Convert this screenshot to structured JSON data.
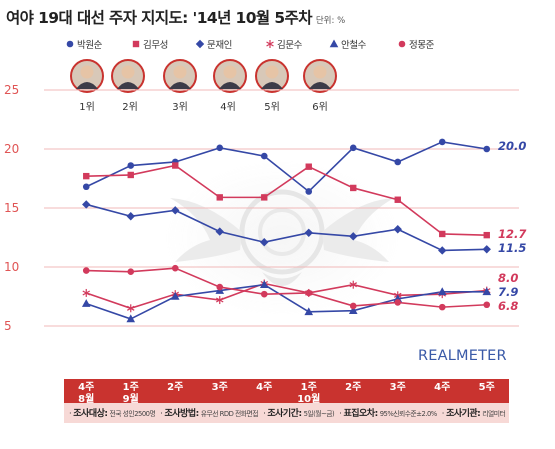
{
  "chart_data": {
    "type": "line",
    "title": "여야 19대 대선 주자 지지도: '14년 10월 5주차",
    "unit_label": "단위: %",
    "categories": [
      {
        "week": "4주",
        "month": "8월"
      },
      {
        "week": "1주",
        "month": "9월"
      },
      {
        "week": "2주",
        "month": ""
      },
      {
        "week": "3주",
        "month": ""
      },
      {
        "week": "4주",
        "month": ""
      },
      {
        "week": "1주",
        "month": "10월"
      },
      {
        "week": "2주",
        "month": ""
      },
      {
        "week": "3주",
        "month": ""
      },
      {
        "week": "4주",
        "month": ""
      },
      {
        "week": "5주",
        "month": ""
      }
    ],
    "ylim": [
      5,
      25
    ],
    "yticks": [
      "5",
      "10",
      "15",
      "20",
      "25"
    ],
    "grid": true,
    "series": [
      {
        "name": "박원순",
        "color": "#3548a6",
        "marker": "circle",
        "rank": "1위",
        "end_label": "20.0",
        "values": [
          16.8,
          18.6,
          18.9,
          20.1,
          19.4,
          16.4,
          20.1,
          18.9,
          20.6,
          20.0
        ]
      },
      {
        "name": "김무성",
        "color": "#d23a5c",
        "marker": "square",
        "rank": "2위",
        "end_label": "12.7",
        "values": [
          17.7,
          17.8,
          18.6,
          15.9,
          15.9,
          18.5,
          16.7,
          15.7,
          12.8,
          12.7
        ]
      },
      {
        "name": "문재인",
        "color": "#3548a6",
        "marker": "diamond",
        "rank": "3위",
        "end_label": "11.5",
        "values": [
          15.3,
          14.3,
          14.8,
          13.0,
          12.1,
          12.9,
          12.6,
          13.2,
          11.4,
          11.5
        ]
      },
      {
        "name": "김문수",
        "color": "#d23a5c",
        "marker": "asterisk",
        "rank": "4위",
        "end_label": "8.0",
        "values": [
          7.8,
          6.5,
          7.7,
          7.2,
          8.6,
          7.8,
          8.5,
          7.6,
          7.7,
          8.0
        ]
      },
      {
        "name": "안철수",
        "color": "#3548a6",
        "marker": "triangle",
        "rank": "5위",
        "end_label": "7.9",
        "values": [
          6.9,
          5.6,
          7.5,
          8.0,
          8.5,
          6.2,
          6.3,
          7.3,
          7.9,
          7.9
        ]
      },
      {
        "name": "정몽준",
        "color": "#d23a5c",
        "marker": "circle",
        "rank": "6위",
        "end_label": "6.8",
        "values": [
          9.7,
          9.6,
          9.9,
          8.3,
          7.7,
          7.8,
          6.7,
          7.0,
          6.6,
          6.8
        ]
      }
    ]
  },
  "brand": "REALMETER",
  "footer": [
    {
      "label": "조사대상:",
      "value": "전국 성인2500명"
    },
    {
      "label": "조사방법:",
      "value": "유무선 RDD 전화면접"
    },
    {
      "label": "조사기간:",
      "value": "5일(월~금)"
    },
    {
      "label": "표집오차:",
      "value": "95%신뢰수준±2.0%"
    },
    {
      "label": "조사기관:",
      "value": "리얼미터"
    }
  ]
}
